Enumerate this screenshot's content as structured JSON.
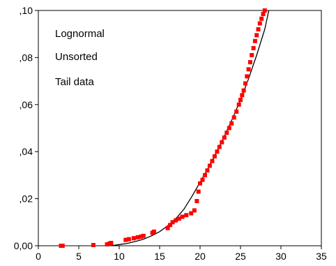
{
  "chart_data": {
    "type": "scatter",
    "annotations": [
      "Lognormal",
      "Unsorted",
      "Tail data"
    ],
    "xlim": [
      0,
      35
    ],
    "ylim": [
      0.0,
      0.1
    ],
    "x_ticks": [
      0,
      5,
      10,
      15,
      20,
      25,
      30,
      35
    ],
    "x_tick_labels": [
      "0",
      "5",
      "10",
      "15",
      "20",
      "25",
      "30",
      "35"
    ],
    "y_ticks": [
      0.0,
      0.02,
      0.04,
      0.06,
      0.08,
      0.1
    ],
    "y_tick_labels": [
      "0,00",
      ",02",
      ",04",
      ",06",
      ",08",
      ",10"
    ],
    "grid": false,
    "colors": {
      "points": "#ff0000",
      "curve": "#000000"
    },
    "series": [
      {
        "kind": "points",
        "x": [
          2.8,
          3.0,
          6.8,
          8.5,
          8.8,
          9.0,
          10.8,
          11.2,
          11.8,
          12.3,
          12.7,
          13.0,
          14.1,
          14.3,
          16.0,
          16.3,
          16.6,
          17.0,
          17.4,
          17.8,
          18.3,
          18.9,
          19.3,
          19.6,
          19.8,
          20.0,
          20.3,
          20.6,
          20.9,
          21.2,
          21.5,
          21.8,
          22.1,
          22.4,
          22.7,
          23.0,
          23.3,
          23.6,
          23.9,
          24.2,
          24.5,
          24.8,
          25.0,
          25.2,
          25.4,
          25.6,
          25.8,
          26.0,
          26.2,
          26.4,
          26.6,
          26.8,
          27.0,
          27.2,
          27.4,
          27.6,
          27.8,
          28.0
        ],
        "y": [
          0.0,
          0.0,
          0.0003,
          0.0006,
          0.0009,
          0.0012,
          0.0025,
          0.0028,
          0.0032,
          0.0036,
          0.0039,
          0.0042,
          0.0055,
          0.006,
          0.0075,
          0.0088,
          0.01,
          0.0108,
          0.0115,
          0.0123,
          0.013,
          0.0138,
          0.015,
          0.019,
          0.023,
          0.0265,
          0.028,
          0.03,
          0.032,
          0.034,
          0.036,
          0.038,
          0.04,
          0.042,
          0.044,
          0.046,
          0.048,
          0.05,
          0.052,
          0.0545,
          0.057,
          0.06,
          0.062,
          0.064,
          0.066,
          0.069,
          0.072,
          0.075,
          0.078,
          0.081,
          0.084,
          0.087,
          0.0895,
          0.092,
          0.0945,
          0.0965,
          0.0985,
          0.1
        ]
      },
      {
        "kind": "curve",
        "x": [
          9.0,
          10.0,
          11.0,
          12.0,
          13.0,
          14.0,
          15.0,
          16.0,
          17.0,
          18.0,
          19.0,
          20.0,
          21.0,
          22.0,
          23.0,
          24.0,
          25.0,
          26.0,
          27.0,
          28.0,
          28.5
        ],
        "y": [
          0.0,
          0.0005,
          0.001,
          0.0018,
          0.0028,
          0.0042,
          0.006,
          0.0085,
          0.0115,
          0.0155,
          0.021,
          0.027,
          0.033,
          0.0395,
          0.0465,
          0.054,
          0.062,
          0.071,
          0.081,
          0.092,
          0.1
        ]
      }
    ]
  }
}
